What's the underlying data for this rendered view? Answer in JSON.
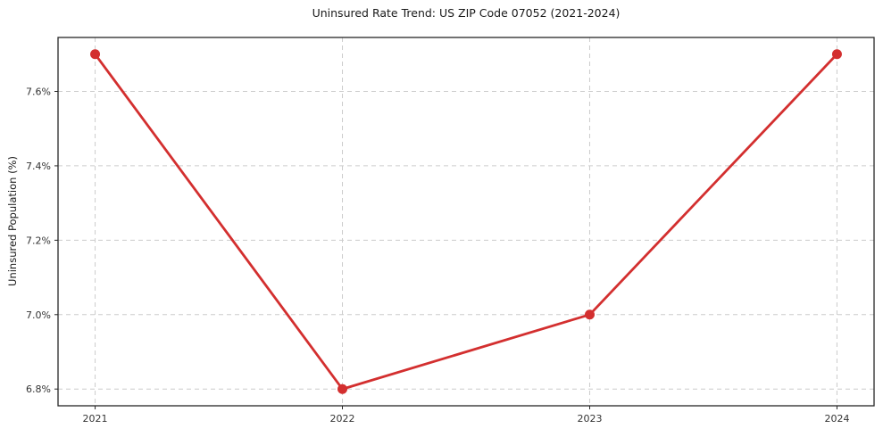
{
  "chart_data": {
    "type": "line",
    "title": "Uninsured Rate Trend: US ZIP Code 07052 (2021-2024)",
    "xlabel": "",
    "ylabel": "Uninsured Population (%)",
    "x": [
      2021,
      2022,
      2023,
      2024
    ],
    "x_tick_labels": [
      "2021",
      "2022",
      "2023",
      "2024"
    ],
    "series": [
      {
        "name": "Uninsured Population (%)",
        "values": [
          7.7,
          6.8,
          7.0,
          7.7
        ]
      }
    ],
    "y_ticks": [
      6.8,
      7.0,
      7.2,
      7.4,
      7.6
    ],
    "y_tick_labels": [
      "6.8%",
      "7.0%",
      "7.2%",
      "7.4%",
      "7.6%"
    ],
    "xlim": [
      2020.85,
      2024.15
    ],
    "ylim": [
      6.755,
      7.745
    ],
    "grid": true,
    "legend": "none",
    "colors": {
      "line": "#d32f2f",
      "marker": "#d32f2f",
      "grid": "#cccccc",
      "axis": "#262626",
      "tick_text": "#333333"
    }
  }
}
